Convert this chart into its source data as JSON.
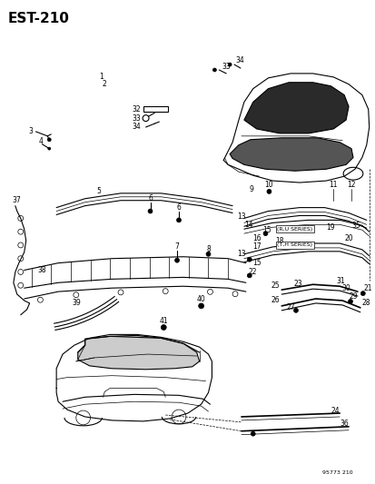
{
  "title": "EST-210",
  "subtitle": "95773 210",
  "bg_color": "#ffffff",
  "fg_color": "#000000",
  "title_fontsize": 11,
  "figsize": [
    4.14,
    5.33
  ],
  "dpi": 100,
  "fs_small": 5.5,
  "fs_tiny": 4.5
}
